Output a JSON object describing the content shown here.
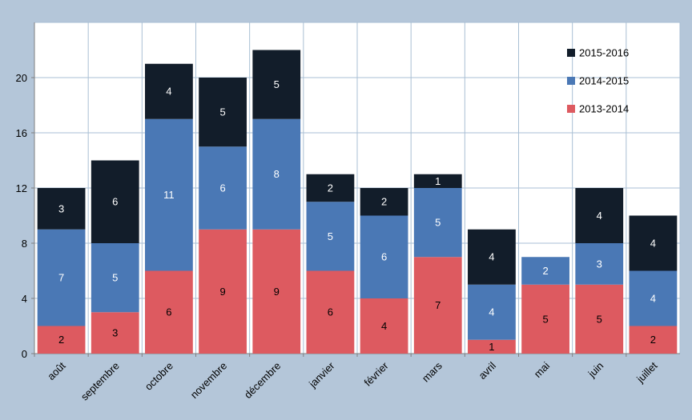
{
  "chart_data": {
    "type": "bar",
    "stacked": true,
    "title": "",
    "xlabel": "",
    "ylabel": "",
    "ylim": [
      0,
      24
    ],
    "yticks": [
      0,
      4,
      8,
      12,
      16,
      20
    ],
    "grid": true,
    "legend_position": "top-right",
    "categories": [
      "août",
      "septembre",
      "octobre",
      "novembre",
      "décembre",
      "janvier",
      "février",
      "mars",
      "avril",
      "mai",
      "juin",
      "juillet"
    ],
    "series": [
      {
        "name": "2013-2014",
        "color": "#dd5a60",
        "label_color": "#000000",
        "values": [
          2,
          3,
          6,
          9,
          9,
          6,
          4,
          7,
          1,
          5,
          5,
          2
        ]
      },
      {
        "name": "2014-2015",
        "color": "#4a78b5",
        "label_color": "#ffffff",
        "values": [
          7,
          5,
          11,
          6,
          8,
          5,
          6,
          5,
          4,
          2,
          3,
          4
        ]
      },
      {
        "name": "2015-2016",
        "color": "#121d2a",
        "label_color": "#ffffff",
        "values": [
          3,
          6,
          4,
          5,
          5,
          2,
          2,
          1,
          4,
          0,
          4,
          4
        ]
      }
    ],
    "legend_order": [
      "2015-2016",
      "2014-2015",
      "2013-2014"
    ]
  }
}
